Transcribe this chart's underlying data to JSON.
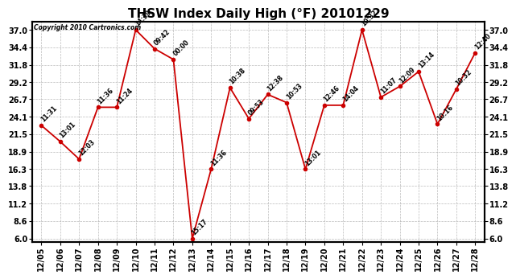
{
  "title": "THSW Index Daily High (°F) 20101229",
  "copyright": "Copyright 2010 Cartronics.com",
  "dates": [
    "12/05",
    "12/06",
    "12/07",
    "12/08",
    "12/09",
    "12/10",
    "12/11",
    "12/12",
    "12/13",
    "12/14",
    "12/15",
    "12/16",
    "12/17",
    "12/18",
    "12/19",
    "12/20",
    "12/21",
    "12/22",
    "12/23",
    "12/24",
    "12/25",
    "12/26",
    "12/27",
    "12/28"
  ],
  "values": [
    22.8,
    20.4,
    17.8,
    25.5,
    25.5,
    37.0,
    34.2,
    32.6,
    6.0,
    16.3,
    28.4,
    23.8,
    27.4,
    26.2,
    16.3,
    25.8,
    25.8,
    37.0,
    27.0,
    28.6,
    30.8,
    23.0,
    28.2,
    33.6
  ],
  "time_labels": [
    "11:31",
    "13:01",
    "12:03",
    "11:36",
    "11:24",
    "14:39",
    "09:42",
    "00:00",
    "15:17",
    "11:36",
    "10:38",
    "09:53",
    "12:38",
    "10:53",
    "13:01",
    "12:46",
    "14:04",
    "10:32",
    "11:07",
    "12:09",
    "13:14",
    "10:16",
    "10:32",
    "12:40"
  ],
  "yticks": [
    6.0,
    8.6,
    11.2,
    13.8,
    16.3,
    18.9,
    21.5,
    24.1,
    26.7,
    29.2,
    31.8,
    34.4,
    37.0
  ],
  "ymin": 5.5,
  "ymax": 38.2,
  "line_color": "#cc0000",
  "marker_color": "#cc0000",
  "bg_color": "#ffffff",
  "grid_color": "#aaaaaa",
  "title_fontsize": 11,
  "tick_fontsize": 7,
  "annot_fontsize": 5.5
}
